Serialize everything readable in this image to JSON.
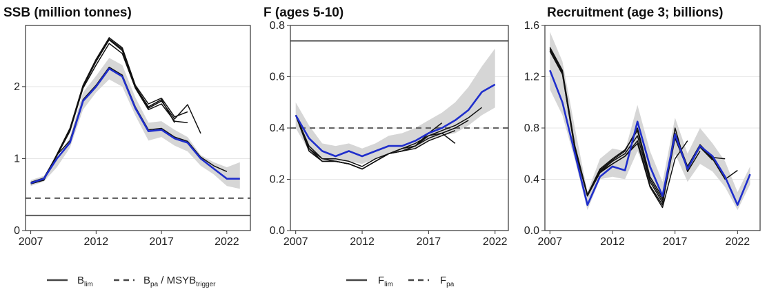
{
  "colors": {
    "final": "#1f2ecc",
    "retro": "#111111",
    "band": "#d6d6d6",
    "grid": "#e6e6e6",
    "ref": "#666666"
  },
  "legends": {
    "ssb": {
      "solid_main": "B",
      "solid_sub": "lim",
      "dashed_main": "B",
      "dashed_sub": "pa",
      "dashed_mid": " / MSYB",
      "dashed_sub2": "trigger"
    },
    "f": {
      "solid_main": "F",
      "solid_sub": "lim",
      "dashed_main": "F",
      "dashed_sub": "pa"
    }
  },
  "chart_data": [
    {
      "type": "line",
      "title": "SSB (million tonnes)",
      "xlabel": "",
      "ylabel": "",
      "xlim": [
        2006.6,
        2023.8
      ],
      "ylim": [
        0,
        2.85
      ],
      "xticks": [
        2007,
        2012,
        2017,
        2022
      ],
      "yticks": [
        0,
        1,
        2
      ],
      "ytick_labels": [
        "0",
        "1",
        "2"
      ],
      "reference_lines": [
        {
          "name": "Blim",
          "value": 0.21,
          "style": "solid"
        },
        {
          "name": "Bpa / MSYBtrigger",
          "value": 0.45,
          "style": "dashed"
        }
      ],
      "band": {
        "x": [
          2007,
          2008,
          2009,
          2010,
          2011,
          2012,
          2013,
          2014,
          2015,
          2016,
          2017,
          2018,
          2019,
          2020,
          2021,
          2022,
          2023
        ],
        "lower": [
          0.62,
          0.68,
          0.88,
          1.15,
          1.68,
          1.92,
          2.1,
          2.0,
          1.6,
          1.25,
          1.3,
          1.18,
          1.1,
          0.9,
          0.78,
          0.62,
          0.58
        ],
        "upper": [
          0.7,
          0.76,
          1.0,
          1.3,
          1.92,
          2.15,
          2.4,
          2.3,
          1.85,
          1.5,
          1.52,
          1.4,
          1.3,
          1.05,
          0.95,
          0.88,
          0.95
        ]
      },
      "series": [
        {
          "role": "final",
          "x": [
            2007,
            2008,
            2009,
            2010,
            2011,
            2012,
            2013,
            2014,
            2015,
            2016,
            2017,
            2018,
            2019,
            2020,
            2021,
            2022,
            2023
          ],
          "values": [
            0.66,
            0.72,
            1.0,
            1.22,
            1.8,
            2.0,
            2.25,
            2.14,
            1.7,
            1.38,
            1.4,
            1.28,
            1.22,
            1.0,
            0.86,
            0.72,
            0.72
          ]
        },
        {
          "role": "retro",
          "x": [
            2007,
            2008,
            2009,
            2010,
            2011,
            2012,
            2013,
            2014,
            2015,
            2016,
            2017,
            2018,
            2019,
            2020,
            2021,
            2022
          ],
          "values": [
            0.67,
            0.73,
            1.05,
            1.25,
            1.82,
            2.02,
            2.27,
            2.16,
            1.72,
            1.4,
            1.42,
            1.3,
            1.24,
            1.02,
            0.9,
            0.82
          ]
        },
        {
          "role": "retro",
          "x": [
            2007,
            2008,
            2009,
            2010,
            2011,
            2012,
            2013,
            2014,
            2015,
            2016,
            2017,
            2018
          ],
          "values": [
            0.65,
            0.7,
            1.05,
            1.4,
            2.0,
            2.35,
            2.65,
            2.5,
            2.0,
            1.72,
            1.82,
            1.5
          ]
        },
        {
          "role": "retro",
          "x": [
            2007,
            2008,
            2009,
            2010,
            2011,
            2012,
            2013,
            2014,
            2015,
            2016,
            2017,
            2018,
            2019
          ],
          "values": [
            0.66,
            0.71,
            1.06,
            1.42,
            2.02,
            2.38,
            2.68,
            2.54,
            2.02,
            1.76,
            1.84,
            1.58,
            1.65
          ]
        },
        {
          "role": "retro",
          "x": [
            2007,
            2008,
            2009,
            2010,
            2011,
            2012,
            2013,
            2014,
            2015,
            2016,
            2017,
            2018,
            2019,
            2020
          ],
          "values": [
            0.65,
            0.7,
            1.05,
            1.4,
            2.0,
            2.36,
            2.66,
            2.52,
            2.0,
            1.7,
            1.8,
            1.55,
            1.75,
            1.35
          ]
        },
        {
          "role": "retro",
          "x": [
            2007,
            2008,
            2009,
            2010,
            2011,
            2012,
            2013,
            2014,
            2015,
            2016,
            2017,
            2018,
            2019
          ],
          "values": [
            0.66,
            0.7,
            1.04,
            1.38,
            1.98,
            2.3,
            2.6,
            2.46,
            1.98,
            1.68,
            1.76,
            1.52,
            1.5
          ]
        }
      ]
    },
    {
      "type": "line",
      "title": "F (ages 5-10)",
      "xlabel": "",
      "ylabel": "",
      "xlim": [
        2006.6,
        2023.0
      ],
      "ylim": [
        0,
        0.8
      ],
      "xticks": [
        2007,
        2012,
        2017,
        2022
      ],
      "yticks": [
        0,
        0.2,
        0.4,
        0.6,
        0.8
      ],
      "ytick_labels": [
        "0.0",
        "0.2",
        "0.4",
        "0.6",
        "0.8"
      ],
      "reference_lines": [
        {
          "name": "Flim",
          "value": 0.74,
          "style": "solid"
        },
        {
          "name": "Fpa",
          "value": 0.4,
          "style": "dashed"
        }
      ],
      "band": {
        "x": [
          2007,
          2008,
          2009,
          2010,
          2011,
          2012,
          2013,
          2014,
          2015,
          2016,
          2017,
          2018,
          2019,
          2020,
          2021,
          2022
        ],
        "lower": [
          0.4,
          0.31,
          0.28,
          0.27,
          0.27,
          0.26,
          0.28,
          0.3,
          0.31,
          0.32,
          0.35,
          0.37,
          0.38,
          0.41,
          0.45,
          0.48
        ],
        "upper": [
          0.5,
          0.41,
          0.34,
          0.33,
          0.34,
          0.32,
          0.34,
          0.37,
          0.38,
          0.4,
          0.43,
          0.46,
          0.5,
          0.56,
          0.64,
          0.71
        ]
      },
      "series": [
        {
          "role": "final",
          "x": [
            2007,
            2008,
            2009,
            2010,
            2011,
            2012,
            2013,
            2014,
            2015,
            2016,
            2017,
            2018,
            2019,
            2020,
            2021,
            2022
          ],
          "values": [
            0.45,
            0.36,
            0.31,
            0.29,
            0.31,
            0.29,
            0.31,
            0.33,
            0.33,
            0.35,
            0.38,
            0.4,
            0.43,
            0.47,
            0.54,
            0.57
          ]
        },
        {
          "role": "retro",
          "x": [
            2007,
            2008,
            2009,
            2010,
            2011,
            2012,
            2013,
            2014,
            2015,
            2016,
            2017,
            2018,
            2019,
            2020,
            2021
          ],
          "values": [
            0.45,
            0.33,
            0.28,
            0.28,
            0.27,
            0.25,
            0.28,
            0.3,
            0.32,
            0.34,
            0.37,
            0.39,
            0.41,
            0.44,
            0.48
          ]
        },
        {
          "role": "retro",
          "x": [
            2007,
            2008,
            2009,
            2010,
            2011,
            2012,
            2013,
            2014,
            2015,
            2016,
            2017,
            2018,
            2019,
            2020
          ],
          "values": [
            0.45,
            0.32,
            0.27,
            0.27,
            0.26,
            0.24,
            0.27,
            0.3,
            0.31,
            0.33,
            0.36,
            0.38,
            0.4,
            0.43
          ]
        },
        {
          "role": "retro",
          "x": [
            2007,
            2008,
            2009,
            2010,
            2011,
            2012,
            2013,
            2014,
            2015,
            2016,
            2017,
            2018,
            2019
          ],
          "values": [
            0.45,
            0.31,
            0.27,
            0.27,
            0.26,
            0.24,
            0.27,
            0.3,
            0.31,
            0.32,
            0.35,
            0.37,
            0.39
          ]
        },
        {
          "role": "retro",
          "x": [
            2007,
            2008,
            2009,
            2010,
            2011,
            2012,
            2013,
            2014,
            2015,
            2016,
            2017,
            2018
          ],
          "values": [
            0.45,
            0.32,
            0.28,
            0.27,
            0.26,
            0.24,
            0.27,
            0.3,
            0.32,
            0.33,
            0.38,
            0.42
          ]
        },
        {
          "role": "retro",
          "x": [
            2007,
            2008,
            2009,
            2010,
            2011,
            2012,
            2013,
            2014,
            2015,
            2016,
            2017,
            2018,
            2019
          ],
          "values": [
            0.45,
            0.32,
            0.27,
            0.27,
            0.26,
            0.24,
            0.27,
            0.3,
            0.31,
            0.33,
            0.37,
            0.38,
            0.34
          ]
        }
      ]
    },
    {
      "type": "line",
      "title": "Recruitment (age 3; billions)",
      "xlabel": "",
      "ylabel": "",
      "xlim": [
        2006.6,
        2023.8
      ],
      "ylim": [
        0,
        1.6
      ],
      "xticks": [
        2007,
        2012,
        2017,
        2022
      ],
      "yticks": [
        0,
        0.4,
        0.8,
        1.2,
        1.6
      ],
      "ytick_labels": [
        "0.0",
        "0.4",
        "0.8",
        "1.2",
        "1.6"
      ],
      "reference_lines": [],
      "band": {
        "x": [
          2007,
          2008,
          2009,
          2010,
          2011,
          2012,
          2013,
          2014,
          2015,
          2016,
          2017,
          2018,
          2019,
          2020,
          2021,
          2022,
          2023
        ],
        "lower": [
          1.1,
          0.9,
          0.55,
          0.16,
          0.4,
          0.42,
          0.4,
          0.62,
          0.38,
          0.2,
          0.6,
          0.38,
          0.52,
          0.46,
          0.34,
          0.16,
          0.36
        ],
        "upper": [
          1.55,
          1.32,
          0.8,
          0.3,
          0.56,
          0.64,
          0.62,
          0.98,
          0.62,
          0.38,
          0.88,
          0.6,
          0.8,
          0.68,
          0.54,
          0.3,
          0.5
        ]
      },
      "series": [
        {
          "role": "final",
          "x": [
            2007,
            2008,
            2009,
            2010,
            2011,
            2012,
            2013,
            2014,
            2015,
            2016,
            2017,
            2018,
            2019,
            2020,
            2021,
            2022,
            2023
          ],
          "values": [
            1.25,
            1.0,
            0.6,
            0.2,
            0.42,
            0.5,
            0.47,
            0.85,
            0.5,
            0.27,
            0.75,
            0.48,
            0.66,
            0.58,
            0.42,
            0.2,
            0.44
          ]
        },
        {
          "role": "retro",
          "x": [
            2007,
            2008,
            2009,
            2010,
            2011,
            2012,
            2013,
            2014,
            2015,
            2016,
            2017,
            2018,
            2019,
            2020,
            2021
          ],
          "values": [
            1.42,
            1.24,
            0.65,
            0.28,
            0.47,
            0.55,
            0.62,
            0.8,
            0.42,
            0.26,
            0.76,
            0.5,
            0.67,
            0.57,
            0.56
          ]
        },
        {
          "role": "retro",
          "x": [
            2007,
            2008,
            2009,
            2010,
            2011,
            2012,
            2013,
            2014,
            2015,
            2016,
            2017,
            2018,
            2019,
            2020,
            2021,
            2022
          ],
          "values": [
            1.43,
            1.25,
            0.66,
            0.28,
            0.48,
            0.56,
            0.63,
            0.78,
            0.4,
            0.24,
            0.74,
            0.5,
            0.66,
            0.56,
            0.4,
            0.47
          ]
        },
        {
          "role": "retro",
          "x": [
            2007,
            2008,
            2009,
            2010,
            2011,
            2012,
            2013,
            2014,
            2015,
            2016,
            2017,
            2018,
            2019,
            2020
          ],
          "values": [
            1.41,
            1.23,
            0.64,
            0.27,
            0.46,
            0.54,
            0.6,
            0.74,
            0.38,
            0.22,
            0.72,
            0.48,
            0.65,
            0.55
          ]
        },
        {
          "role": "retro",
          "x": [
            2007,
            2008,
            2009,
            2010,
            2011,
            2012,
            2013,
            2014,
            2015,
            2016,
            2017,
            2018,
            2019
          ],
          "values": [
            1.4,
            1.22,
            0.64,
            0.27,
            0.46,
            0.52,
            0.58,
            0.7,
            0.35,
            0.2,
            0.8,
            0.46,
            0.62
          ]
        },
        {
          "role": "retro",
          "x": [
            2007,
            2008,
            2009,
            2010,
            2011,
            2012,
            2013,
            2014,
            2015,
            2016,
            2017,
            2018
          ],
          "values": [
            1.4,
            1.22,
            0.63,
            0.27,
            0.45,
            0.52,
            0.58,
            0.68,
            0.34,
            0.18,
            0.56,
            0.7
          ]
        }
      ]
    }
  ]
}
